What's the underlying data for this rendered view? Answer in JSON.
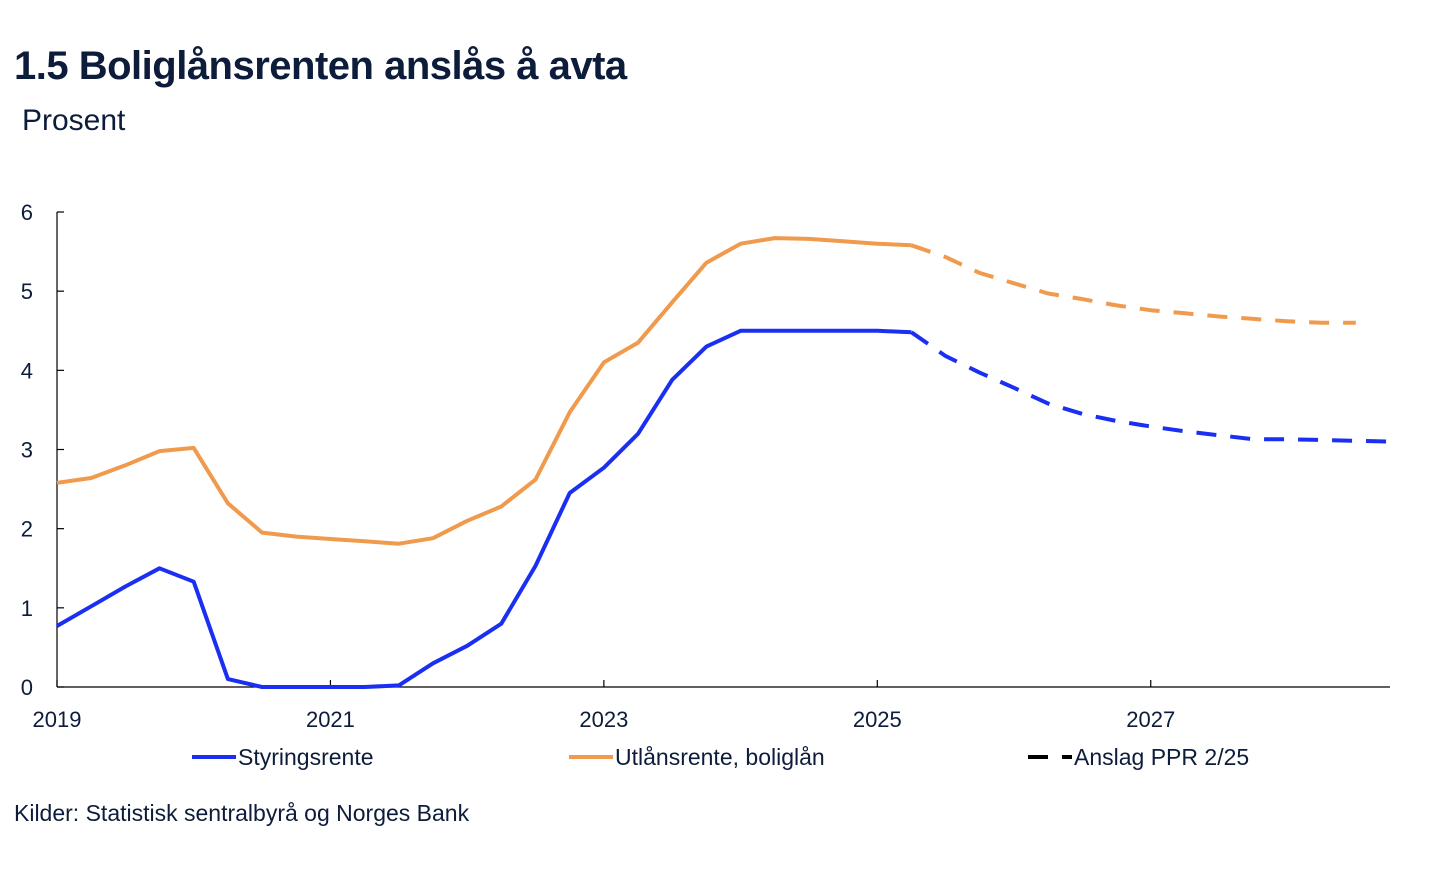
{
  "header": {
    "title": "1.5 Boliglånsrenten anslås å avta",
    "subtitle": "Prosent"
  },
  "footer": {
    "source": "Kilder: Statistisk sentralbyrå og Norges Bank"
  },
  "legend": {
    "items": [
      {
        "label": "Styringsrente",
        "color": "#1a2ff2",
        "style": "solid"
      },
      {
        "label": "Utlånsrente, boliglån",
        "color": "#ef9a4c",
        "style": "solid"
      },
      {
        "label": "Anslag PPR 2/25",
        "color": "#000000",
        "style": "dashed"
      }
    ]
  },
  "chart_data": {
    "type": "line",
    "title": "1.5 Boliglånsrenten anslås å avta",
    "ylabel": "Prosent",
    "xlabel": "",
    "xlim": [
      2019.0,
      2028.75
    ],
    "ylim": [
      0,
      6
    ],
    "yticks": [
      0,
      1,
      2,
      3,
      4,
      5,
      6
    ],
    "xticks": [
      2019,
      2021,
      2023,
      2025,
      2027
    ],
    "xticklabels": [
      "2019",
      "2021",
      "2023",
      "2025",
      "2027"
    ],
    "forecast_start": 2025.25,
    "series": [
      {
        "name": "Styringsrente",
        "color": "#1a2ff2",
        "x": [
          2019.0,
          2019.25,
          2019.5,
          2019.75,
          2020.0,
          2020.25,
          2020.5,
          2020.75,
          2021.0,
          2021.25,
          2021.5,
          2021.75,
          2022.0,
          2022.25,
          2022.5,
          2022.75,
          2023.0,
          2023.25,
          2023.5,
          2023.75,
          2024.0,
          2024.25,
          2024.5,
          2024.75,
          2025.0,
          2025.125,
          2025.25,
          2025.5,
          2025.75,
          2026.0,
          2026.25,
          2026.5,
          2026.75,
          2027.0,
          2027.25,
          2027.5,
          2027.75,
          2028.0,
          2028.25,
          2028.5,
          2028.75
        ],
        "values": [
          0.77,
          1.02,
          1.27,
          1.5,
          1.33,
          0.1,
          0.0,
          0.0,
          0.0,
          0.0,
          0.02,
          0.3,
          0.52,
          0.8,
          1.53,
          2.45,
          2.77,
          3.2,
          3.88,
          4.3,
          4.5,
          4.5,
          4.5,
          4.5,
          4.5,
          4.49,
          4.48,
          4.18,
          3.97,
          3.78,
          3.58,
          3.45,
          3.36,
          3.29,
          3.23,
          3.18,
          3.13,
          3.13,
          3.12,
          3.11,
          3.1
        ]
      },
      {
        "name": "Utlånsrente, boliglån",
        "color": "#ef9a4c",
        "x": [
          2019.0,
          2019.25,
          2019.5,
          2019.75,
          2020.0,
          2020.25,
          2020.5,
          2020.75,
          2021.0,
          2021.25,
          2021.5,
          2021.75,
          2022.0,
          2022.25,
          2022.5,
          2022.75,
          2023.0,
          2023.25,
          2023.5,
          2023.75,
          2024.0,
          2024.25,
          2024.5,
          2024.75,
          2025.0,
          2025.125,
          2025.25,
          2025.5,
          2025.75,
          2026.0,
          2026.25,
          2026.5,
          2026.75,
          2027.0,
          2027.25,
          2027.5,
          2027.75,
          2028.0,
          2028.25,
          2028.5
        ],
        "values": [
          2.58,
          2.64,
          2.8,
          2.98,
          3.02,
          2.32,
          1.95,
          1.9,
          1.87,
          1.84,
          1.81,
          1.88,
          2.1,
          2.28,
          2.62,
          3.47,
          4.1,
          4.35,
          4.86,
          5.36,
          5.6,
          5.67,
          5.66,
          5.63,
          5.6,
          5.59,
          5.58,
          5.43,
          5.23,
          5.1,
          4.97,
          4.9,
          4.82,
          4.76,
          4.72,
          4.68,
          4.65,
          4.62,
          4.6,
          4.6
        ]
      }
    ]
  }
}
